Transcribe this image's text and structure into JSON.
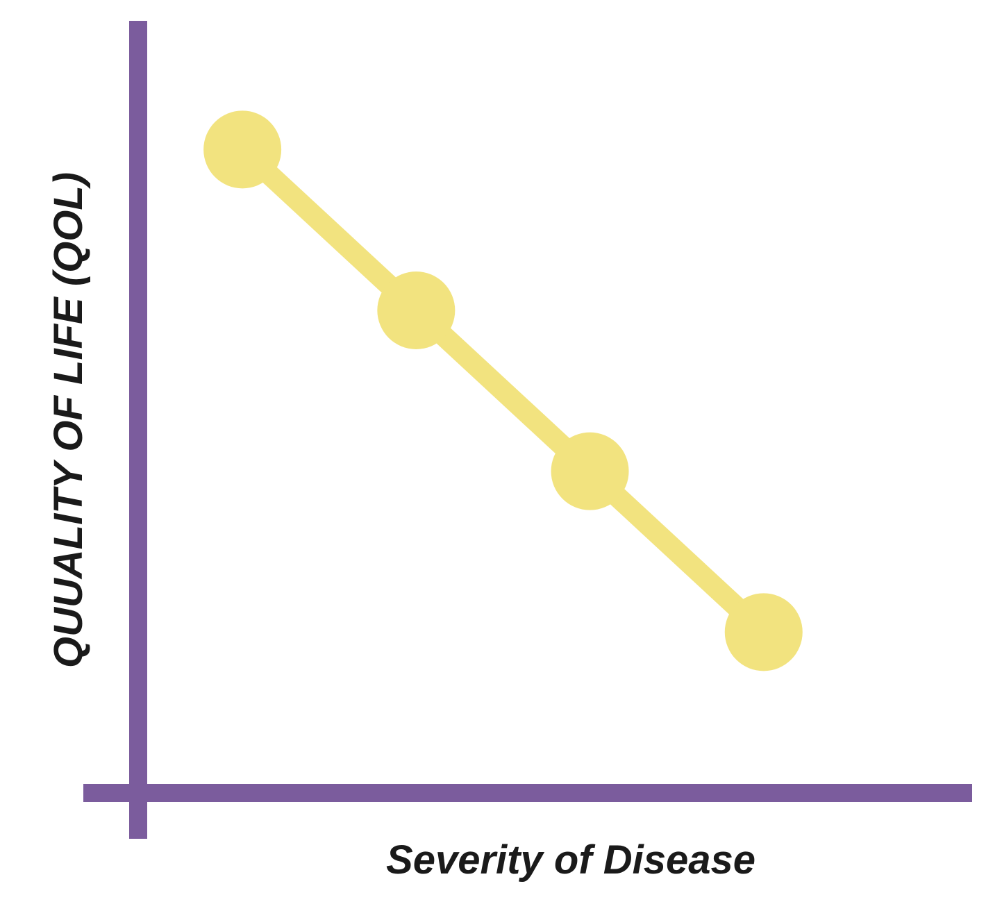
{
  "chart_data": {
    "type": "line",
    "title": "",
    "xlabel": "Severity of Disease",
    "ylabel": "QUUALITY OF LIFE (QOL)",
    "x": [
      1,
      2,
      3,
      4
    ],
    "series": [
      {
        "values": [
          4,
          3,
          2,
          1
        ]
      }
    ],
    "xlim": [
      0.4,
      5.2
    ],
    "ylim": [
      0.0,
      4.8
    ],
    "grid": false,
    "legend": "none",
    "x_ticks_shown": false,
    "y_ticks_shown": false
  },
  "colors": {
    "axis": "#7b5c9d",
    "series": "#f2e37f",
    "text": "#1a1a1a",
    "background": "#ffffff"
  }
}
